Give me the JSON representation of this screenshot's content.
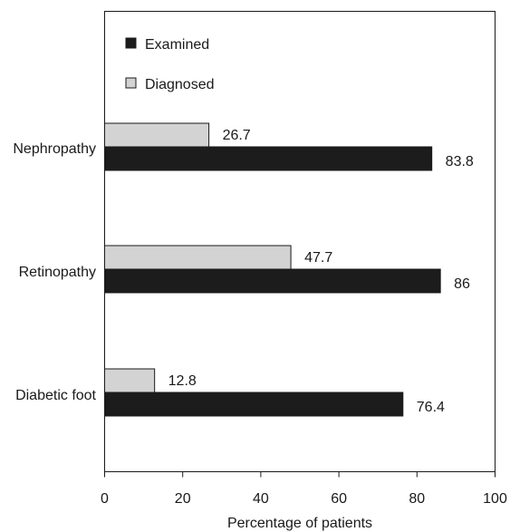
{
  "chart_data": {
    "type": "bar",
    "orientation": "horizontal",
    "title": "",
    "xlabel": "Percentage of patients",
    "ylabel": "",
    "xlim": [
      0,
      100
    ],
    "xticks": [
      0,
      20,
      40,
      60,
      80,
      100
    ],
    "grid": false,
    "legend_position": "top-left",
    "categories": [
      "Nephropathy",
      "Retinopathy",
      "Diabetic foot"
    ],
    "series": [
      {
        "name": "Examined",
        "values": [
          83.8,
          86,
          76.4
        ],
        "color": "#1c1c1c"
      },
      {
        "name": "Diagnosed",
        "values": [
          26.7,
          47.7,
          12.8
        ],
        "color": "#d3d3d3"
      }
    ],
    "value_labels": {
      "Examined": [
        "83.8",
        "86",
        "76.4"
      ],
      "Diagnosed": [
        "26.7",
        "47.7",
        "12.8"
      ]
    }
  }
}
